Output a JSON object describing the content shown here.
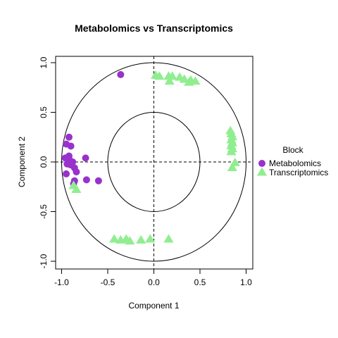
{
  "chart_data": {
    "type": "scatter",
    "title": "Metabolomics vs Transcriptomics",
    "xlabel": "Component 1",
    "ylabel": "Component 2",
    "xlim": [
      -1.1,
      1.1
    ],
    "ylim": [
      -1.1,
      1.1
    ],
    "x_ticks": [
      "-1.0",
      "-0.5",
      "0.0",
      "0.5",
      "1.0"
    ],
    "y_ticks": [
      "-1.0",
      "-0.5",
      "0.0",
      "0.5",
      "1.0"
    ],
    "circles": [
      1.0,
      0.5
    ],
    "reference_lines": {
      "x": 0,
      "y": 0,
      "style": "dashed"
    },
    "grid": false,
    "legend": {
      "title": "Block",
      "position": "right",
      "entries": [
        {
          "label": "Metabolomics",
          "color": "#9932CC",
          "shape": "circle"
        },
        {
          "label": "Transcriptomics",
          "color": "#90EE90",
          "shape": "triangle"
        }
      ]
    },
    "series": [
      {
        "name": "Metabolomics",
        "color": "#9932CC",
        "shape": "circle",
        "points": [
          [
            -0.36,
            0.88
          ],
          [
            -0.92,
            0.25
          ],
          [
            -0.95,
            0.18
          ],
          [
            -0.9,
            0.16
          ],
          [
            -0.92,
            0.06
          ],
          [
            -0.96,
            0.04
          ],
          [
            -0.92,
            0.03
          ],
          [
            -0.88,
            0.0
          ],
          [
            -0.94,
            -0.02
          ],
          [
            -0.9,
            -0.03
          ],
          [
            -0.86,
            -0.06
          ],
          [
            -0.84,
            -0.1
          ],
          [
            -0.95,
            -0.12
          ],
          [
            -0.74,
            0.04
          ],
          [
            -0.73,
            -0.18
          ],
          [
            -0.6,
            -0.19
          ],
          [
            -0.87,
            -0.22
          ],
          [
            -0.86,
            -0.19
          ]
        ]
      },
      {
        "name": "Transcriptomics",
        "color": "#90EE90",
        "shape": "triangle",
        "points": [
          [
            0.02,
            0.87
          ],
          [
            0.06,
            0.86
          ],
          [
            0.16,
            0.86
          ],
          [
            0.2,
            0.86
          ],
          [
            0.28,
            0.85
          ],
          [
            0.33,
            0.83
          ],
          [
            0.4,
            0.82
          ],
          [
            0.45,
            0.81
          ],
          [
            0.17,
            0.81
          ],
          [
            0.38,
            0.8
          ],
          [
            0.83,
            0.31
          ],
          [
            0.84,
            0.28
          ],
          [
            0.85,
            0.25
          ],
          [
            0.84,
            0.22
          ],
          [
            0.85,
            0.19
          ],
          [
            0.84,
            0.16
          ],
          [
            0.85,
            0.13
          ],
          [
            0.84,
            0.1
          ],
          [
            0.88,
            -0.01
          ],
          [
            0.85,
            -0.06
          ],
          [
            -0.87,
            -0.24
          ],
          [
            -0.84,
            -0.28
          ],
          [
            -0.43,
            -0.78
          ],
          [
            -0.36,
            -0.79
          ],
          [
            -0.3,
            -0.78
          ],
          [
            -0.26,
            -0.8
          ],
          [
            -0.14,
            -0.79
          ],
          [
            -0.04,
            -0.78
          ],
          [
            0.16,
            -0.78
          ]
        ]
      }
    ]
  }
}
